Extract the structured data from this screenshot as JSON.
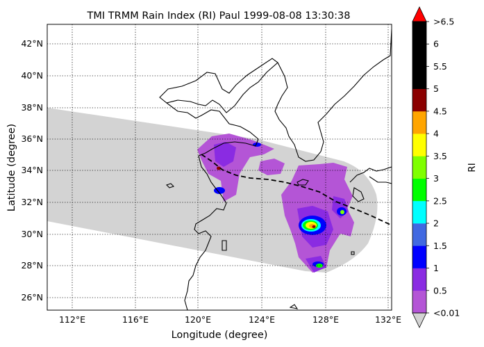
{
  "title": "TMI TRMM Rain Index (RI) Paul 1999-08-08 13:30:38",
  "xlabel": "Longitude (degree)",
  "ylabel": "Latitude (degree)",
  "x_ticks": [
    "112°E",
    "116°E",
    "120°E",
    "124°E",
    "128°E",
    "132°E"
  ],
  "y_ticks": [
    "26°N",
    "28°N",
    "30°N",
    "32°N",
    "34°N",
    "36°N",
    "38°N",
    "40°N",
    "42°N"
  ],
  "colorbar": {
    "label": "RI",
    "ticks": [
      "<0.01",
      "0.5",
      "1",
      "1.5",
      "2",
      "2.5",
      "3",
      "3.5",
      "4",
      "4.5",
      "5",
      "5.5",
      "6",
      ">6.5"
    ],
    "colors": [
      "#b455d6",
      "#8a2be2",
      "#0000ff",
      "#4169e1",
      "#00ffff",
      "#00ff00",
      "#7fff00",
      "#ffff00",
      "#ffa500",
      "#8b0000",
      "#000000",
      "#000000",
      "#000000"
    ],
    "under_color": "#d3d3d3",
    "over_color": "#ff0000"
  },
  "colors": {
    "swath": "#d3d3d3",
    "track": "#000000",
    "coast": "#000000"
  },
  "chart_data": {
    "type": "map",
    "extent": {
      "lon": [
        110.2,
        132.2
      ],
      "lat": [
        25.2,
        43.2
      ]
    },
    "grid": true,
    "track_type": "dashed",
    "variable": "Rain Index (RI)"
  }
}
